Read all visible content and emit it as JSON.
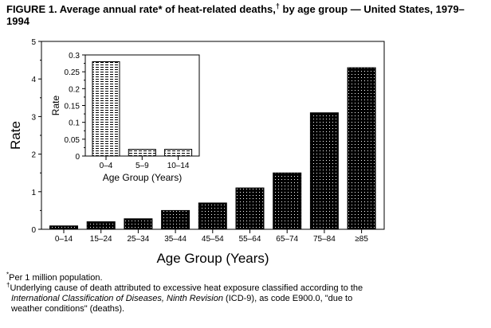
{
  "title": {
    "prefix": "FIGURE 1. Average annual rate",
    "mark1": "*",
    "middle": " of heat-related deaths,",
    "mark2": "†",
    "suffix": " by age group — United States, 1979–1994"
  },
  "chart_data": [
    {
      "type": "bar",
      "categories": [
        "0–14",
        "15–24",
        "25–34",
        "35–44",
        "45–54",
        "55–64",
        "65–74",
        "75–84",
        "≥85"
      ],
      "values": [
        0.09,
        0.2,
        0.28,
        0.5,
        0.7,
        1.1,
        1.5,
        3.1,
        4.3
      ],
      "xlabel": "Age Group (Years)",
      "ylabel": "Rate",
      "ylim": [
        0,
        5
      ],
      "yticks": [
        "0",
        "1",
        "2",
        "3",
        "4",
        "5"
      ],
      "grid": false,
      "fill": "#000000"
    },
    {
      "type": "bar",
      "inset": true,
      "categories": [
        "0–4",
        "5–9",
        "10–14"
      ],
      "values": [
        0.28,
        0.02,
        0.02
      ],
      "xlabel": "Age Group (Years)",
      "ylabel": "Rate",
      "ylim": [
        0,
        0.3
      ],
      "yticks": [
        "0",
        "0.05",
        "0.1",
        "0.15",
        "0.2",
        "0.25",
        "0.3"
      ],
      "grid": false
    }
  ],
  "footnotes": {
    "n1_mark": "*",
    "n1": "Per 1 million population.",
    "n2_mark": "†",
    "n2_a": "Underlying cause of death attributed to excessive heat exposure classified according to the",
    "n2_italic": "International Classification of Diseases, Ninth Revision",
    "n2_b": " (ICD-9), as code E900.0, \"due to",
    "n2_c": "weather conditions\" (deaths)."
  }
}
